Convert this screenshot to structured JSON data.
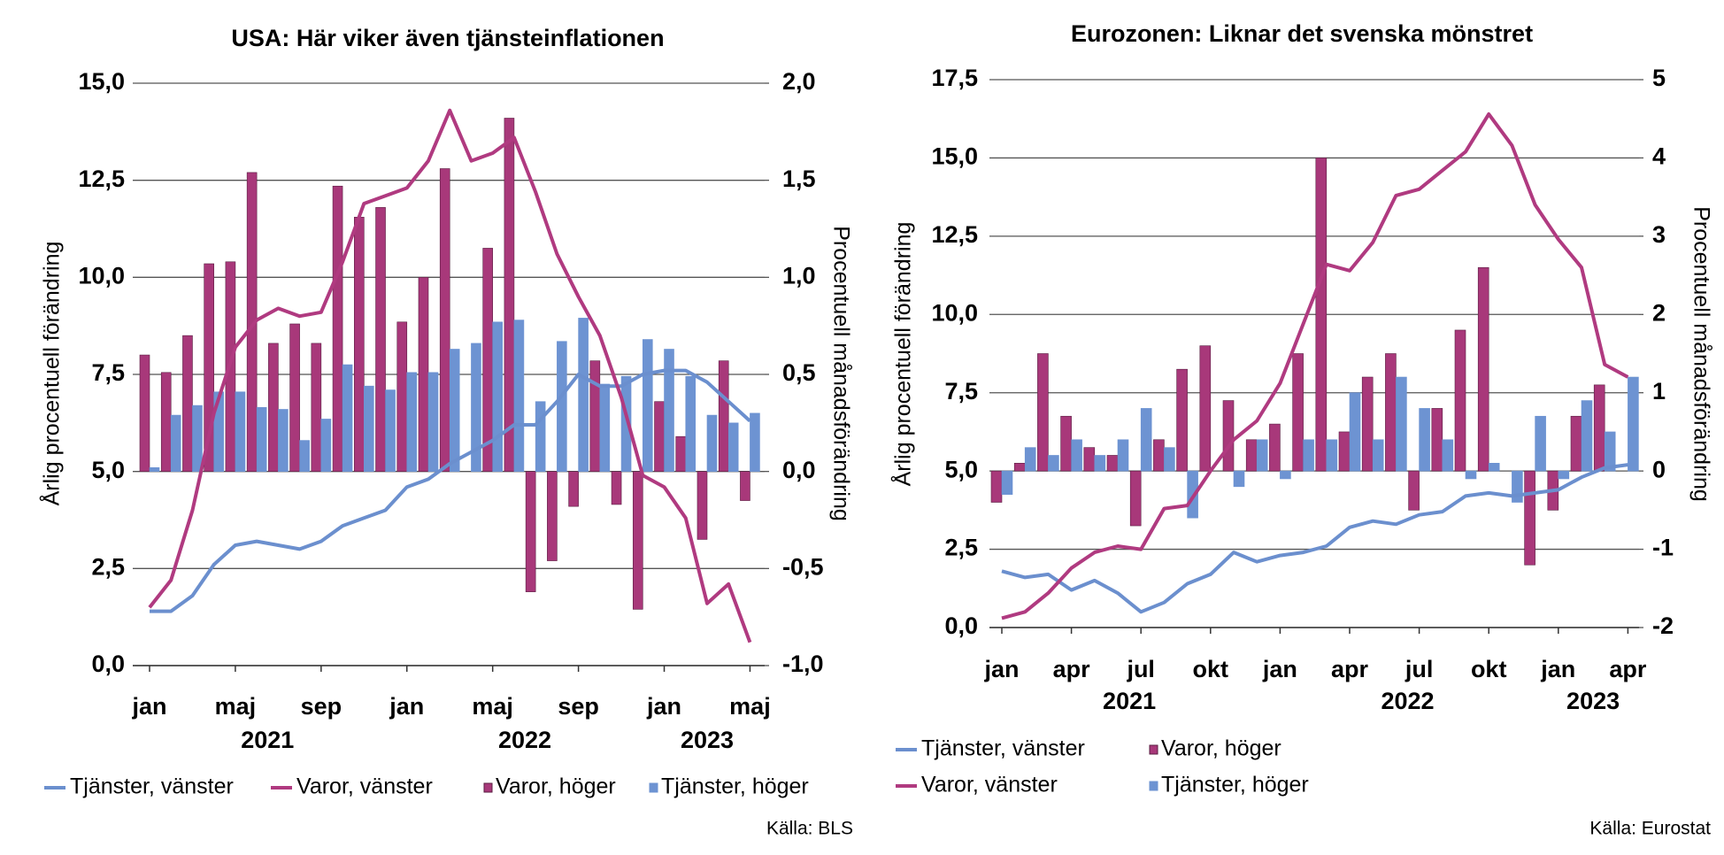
{
  "chart_data": [
    {
      "type": "combo",
      "title": "USA: Här viker även tjänsteinflationen",
      "y_label": "Årlig procentuell förändring",
      "y2_label": "Procentuell månadsförändring",
      "source": "Källa: BLS",
      "categories": [
        "jan",
        null,
        null,
        null,
        "maj",
        null,
        null,
        null,
        "sep",
        null,
        null,
        null,
        "jan",
        null,
        null,
        null,
        "maj",
        null,
        null,
        null,
        "sep",
        null,
        null,
        null,
        "jan",
        null,
        null,
        null,
        "maj"
      ],
      "years": [
        "2021",
        "2022",
        "2023"
      ],
      "ylim": [
        0,
        15
      ],
      "yticks": [
        {
          "value": 0,
          "label": "0,0"
        },
        {
          "value": 2.5,
          "label": "2,5"
        },
        {
          "value": 5,
          "label": "5,0"
        },
        {
          "value": 7.5,
          "label": "7,5"
        },
        {
          "value": 10,
          "label": "10,0"
        },
        {
          "value": 12.5,
          "label": "12,5"
        },
        {
          "value": 15,
          "label": "15,0"
        }
      ],
      "y2lim": [
        -1,
        2
      ],
      "y2ticks": [
        {
          "value": -1,
          "label": "-1,0"
        },
        {
          "value": -0.5,
          "label": "-0,5"
        },
        {
          "value": 0,
          "label": "0,0"
        },
        {
          "value": 0.5,
          "label": "0,5"
        },
        {
          "value": 1,
          "label": "1,0"
        },
        {
          "value": 1.5,
          "label": "1,5"
        },
        {
          "value": 2,
          "label": "2,0"
        }
      ],
      "grid": true,
      "series": [
        {
          "name": "Tjänster, vänster",
          "type": "line",
          "axis": "y",
          "color": "#6b8fce",
          "values": [
            1.4,
            1.4,
            1.8,
            2.6,
            3.1,
            3.2,
            3.1,
            3.0,
            3.2,
            3.6,
            3.8,
            4.0,
            4.6,
            4.8,
            5.2,
            5.5,
            5.8,
            6.2,
            6.2,
            6.8,
            7.5,
            7.2,
            7.2,
            7.5,
            7.6,
            7.6,
            7.3,
            6.8,
            6.3
          ]
        },
        {
          "name": "Varor, vänster",
          "type": "line",
          "axis": "y",
          "color": "#b03a80",
          "values": [
            1.5,
            2.2,
            4.0,
            6.5,
            8.2,
            8.9,
            9.2,
            9.0,
            9.1,
            10.4,
            11.9,
            12.1,
            12.3,
            13.0,
            14.3,
            13.0,
            13.2,
            13.6,
            12.2,
            10.6,
            9.5,
            8.5,
            6.9,
            4.9,
            4.6,
            3.8,
            1.6,
            2.1,
            0.6
          ]
        },
        {
          "name": "Varor, höger",
          "type": "bar",
          "axis": "y2",
          "color": "#a8387a",
          "values": [
            0.6,
            0.51,
            0.7,
            1.07,
            1.08,
            1.54,
            0.66,
            0.76,
            0.66,
            1.47,
            1.31,
            1.36,
            0.77,
            1.0,
            1.56,
            0,
            1.15,
            1.82,
            -0.62,
            -0.46,
            -0.18,
            0.57,
            -0.17,
            -0.71,
            0.36,
            0.18,
            -0.35,
            0.57,
            -0.15
          ]
        },
        {
          "name": "Tjänster, höger",
          "type": "bar",
          "axis": "y2",
          "color": "#6d93d2",
          "values": [
            0.02,
            0.29,
            0.34,
            0.41,
            0.41,
            0.33,
            0.32,
            0.16,
            0.27,
            0.55,
            0.44,
            0.42,
            0.51,
            0.51,
            0.63,
            0.66,
            0.77,
            0.78,
            0.36,
            0.67,
            0.79,
            0.45,
            0.49,
            0.68,
            0.63,
            0.49,
            0.29,
            0.25,
            0.3
          ]
        }
      ]
    },
    {
      "type": "combo",
      "title": "Eurozonen: Liknar det svenska mönstret",
      "y_label": "Årlig procentuell förändring",
      "y2_label": "Procentuell månadsförändring",
      "source": "Källa: Eurostat",
      "categories": [
        "jan",
        null,
        null,
        "apr",
        null,
        null,
        "jul",
        null,
        null,
        "okt",
        null,
        null,
        "jan",
        null,
        null,
        "apr",
        null,
        null,
        "jul",
        null,
        null,
        "okt",
        null,
        null,
        "jan",
        null,
        null,
        "apr"
      ],
      "years": [
        "2021",
        "2022",
        "2023"
      ],
      "ylim": [
        0,
        17.5
      ],
      "yticks": [
        {
          "value": 0,
          "label": "0,0"
        },
        {
          "value": 2.5,
          "label": "2,5"
        },
        {
          "value": 5,
          "label": "5,0"
        },
        {
          "value": 7.5,
          "label": "7,5"
        },
        {
          "value": 10,
          "label": "10,0"
        },
        {
          "value": 12.5,
          "label": "12,5"
        },
        {
          "value": 15,
          "label": "15,0"
        },
        {
          "value": 17.5,
          "label": "17,5"
        }
      ],
      "y2lim": [
        -2,
        5
      ],
      "y2ticks": [
        -2,
        -1,
        0,
        1,
        2,
        3,
        4,
        5
      ],
      "grid": true,
      "series": [
        {
          "name": "Tjänster, vänster",
          "type": "line",
          "axis": "y",
          "color": "#6b8fce",
          "values": [
            1.8,
            1.6,
            1.7,
            1.2,
            1.5,
            1.1,
            0.5,
            0.8,
            1.4,
            1.7,
            2.4,
            2.1,
            2.3,
            2.4,
            2.6,
            3.2,
            3.4,
            3.3,
            3.6,
            3.7,
            4.2,
            4.3,
            4.2,
            4.3,
            4.4,
            4.8,
            5.1,
            5.2
          ]
        },
        {
          "name": "Varor, höger",
          "type": "bar",
          "axis": "y2",
          "color": "#a8387a",
          "values": [
            -0.4,
            0.1,
            1.5,
            0.7,
            0.3,
            0.2,
            -0.7,
            0.4,
            1.3,
            1.6,
            0.9,
            0.4,
            0.6,
            1.5,
            4.0,
            0.5,
            1.2,
            1.5,
            -0.5,
            0.8,
            1.8,
            2.6,
            0,
            -1.2,
            -0.5,
            0.7,
            1.1,
            0
          ]
        },
        {
          "name": "Varor, vänster",
          "type": "line",
          "axis": "y",
          "color": "#b03a80",
          "values": [
            0.3,
            0.5,
            1.1,
            1.9,
            2.4,
            2.6,
            2.5,
            3.8,
            3.9,
            5.0,
            6.0,
            6.6,
            7.8,
            9.7,
            11.6,
            11.4,
            12.3,
            13.8,
            14.0,
            14.6,
            15.2,
            16.4,
            15.4,
            13.5,
            12.4,
            11.5,
            8.4,
            8.0
          ]
        },
        {
          "name": "Tjänster, höger",
          "type": "bar",
          "axis": "y2",
          "color": "#6d93d2",
          "values": [
            -0.3,
            0.3,
            0.2,
            0.4,
            0.2,
            0.4,
            0.8,
            0.3,
            -0.6,
            0,
            -0.2,
            0.4,
            -0.1,
            0.4,
            0.4,
            1.0,
            0.4,
            1.2,
            0.8,
            0.4,
            -0.1,
            0.1,
            -0.4,
            0.7,
            -0.1,
            0.9,
            0.5,
            1.2
          ]
        }
      ]
    }
  ]
}
